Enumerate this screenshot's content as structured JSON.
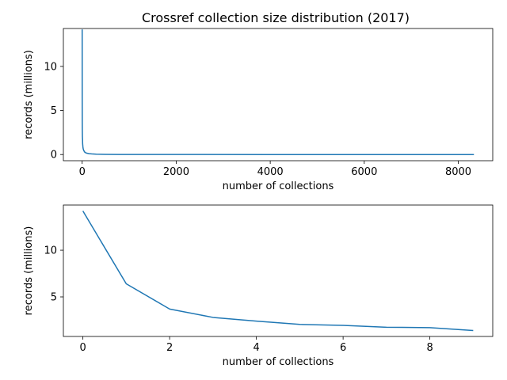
{
  "figure": {
    "title": "Crossref collection size distribution (2017)"
  },
  "chart_data": [
    {
      "type": "line",
      "xlabel": "number of collections",
      "ylabel": "records (millions)",
      "xlim": [
        -400,
        8733
      ],
      "ylim": [
        -0.7,
        14.3
      ],
      "xticks": [
        0,
        2000,
        4000,
        6000,
        8000
      ],
      "yticks": [
        0,
        5,
        10
      ],
      "xticklabels": [
        "0",
        "2000",
        "4000",
        "6000",
        "8000"
      ],
      "yticklabels": [
        "0",
        "5",
        "10"
      ],
      "grid": false,
      "color": "#1f77b4",
      "series": [
        {
          "x": [
            0,
            1,
            2,
            3,
            4,
            5,
            6,
            7,
            8,
            9,
            10,
            15,
            20,
            30,
            50,
            75,
            100,
            150,
            200,
            300,
            500,
            800,
            1000,
            2000,
            4000,
            6000,
            8000,
            8333
          ],
          "y": [
            14.2,
            6.4,
            3.7,
            2.8,
            2.4,
            2.05,
            1.95,
            1.75,
            1.7,
            1.4,
            1.2,
            0.9,
            0.7,
            0.5,
            0.3,
            0.2,
            0.15,
            0.1,
            0.07,
            0.04,
            0.02,
            0.01,
            0.005,
            0.002,
            0.001,
            0.0005,
            0.0002,
            0.0001
          ]
        }
      ]
    },
    {
      "type": "line",
      "xlabel": "number of collections",
      "ylabel": "records (millions)",
      "xlim": [
        -0.45,
        9.45
      ],
      "ylim": [
        0.76,
        14.84
      ],
      "xticks": [
        0,
        2,
        4,
        6,
        8
      ],
      "yticks": [
        5,
        10
      ],
      "xticklabels": [
        "0",
        "2",
        "4",
        "6",
        "8"
      ],
      "yticklabels": [
        "5",
        "10"
      ],
      "grid": false,
      "color": "#1f77b4",
      "series": [
        {
          "x": [
            0,
            1,
            2,
            3,
            4,
            5,
            6,
            7,
            8,
            9
          ],
          "y": [
            14.2,
            6.4,
            3.7,
            2.8,
            2.4,
            2.05,
            1.95,
            1.75,
            1.7,
            1.4
          ]
        }
      ]
    }
  ]
}
